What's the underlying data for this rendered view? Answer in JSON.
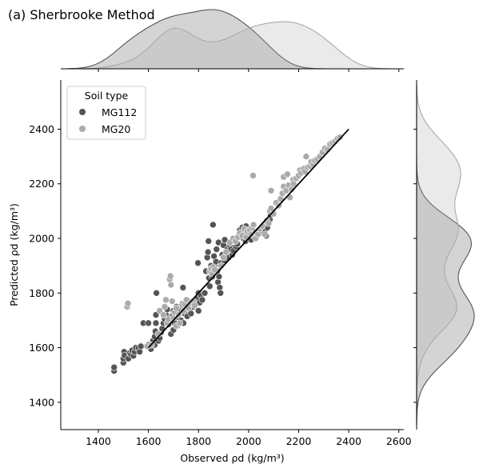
{
  "chart_data": {
    "type": "scatter",
    "title": "(a) Sherbrooke Method",
    "xlabel": "Observed ρd (kg/m³)",
    "ylabel": "Predicted ρd (kg/m³)",
    "xlim": [
      1250,
      2620
    ],
    "ylim": [
      1300,
      2580
    ],
    "xticks": [
      "1400",
      "1600",
      "1800",
      "2000",
      "2200",
      "2400",
      "2600"
    ],
    "yticks": [
      "1400",
      "1600",
      "1800",
      "2000",
      "2200",
      "2400"
    ],
    "legend": {
      "title": "Soil type",
      "position": "upper-left"
    },
    "colors": {
      "MG112": "#555555",
      "MG20": "#aaaaaa",
      "fit_line": "#000000"
    },
    "fit_line": {
      "x": [
        1600,
        2400
      ],
      "y": [
        1600,
        2400
      ]
    },
    "series": [
      {
        "name": "MG112",
        "points": [
          [
            1463,
            1515
          ],
          [
            1463,
            1528
          ],
          [
            1500,
            1545
          ],
          [
            1500,
            1560
          ],
          [
            1503,
            1585
          ],
          [
            1505,
            1572
          ],
          [
            1520,
            1560
          ],
          [
            1525,
            1580
          ],
          [
            1530,
            1575
          ],
          [
            1535,
            1590
          ],
          [
            1540,
            1570
          ],
          [
            1545,
            1585
          ],
          [
            1550,
            1600
          ],
          [
            1560,
            1598
          ],
          [
            1565,
            1585
          ],
          [
            1570,
            1605
          ],
          [
            1580,
            1690
          ],
          [
            1600,
            1610
          ],
          [
            1600,
            1690
          ],
          [
            1610,
            1595
          ],
          [
            1618,
            1625
          ],
          [
            1625,
            1610
          ],
          [
            1625,
            1640
          ],
          [
            1628,
            1660
          ],
          [
            1630,
            1690
          ],
          [
            1630,
            1720
          ],
          [
            1632,
            1800
          ],
          [
            1640,
            1625
          ],
          [
            1645,
            1635
          ],
          [
            1650,
            1655
          ],
          [
            1655,
            1670
          ],
          [
            1660,
            1690
          ],
          [
            1665,
            1705
          ],
          [
            1670,
            1720
          ],
          [
            1675,
            1740
          ],
          [
            1680,
            1685
          ],
          [
            1685,
            1700
          ],
          [
            1690,
            1650
          ],
          [
            1695,
            1715
          ],
          [
            1700,
            1665
          ],
          [
            1700,
            1735
          ],
          [
            1705,
            1690
          ],
          [
            1710,
            1720
          ],
          [
            1712,
            1750
          ],
          [
            1715,
            1680
          ],
          [
            1720,
            1710
          ],
          [
            1725,
            1740
          ],
          [
            1730,
            1700
          ],
          [
            1735,
            1760
          ],
          [
            1738,
            1820
          ],
          [
            1740,
            1690
          ],
          [
            1745,
            1725
          ],
          [
            1750,
            1755
          ],
          [
            1755,
            1715
          ],
          [
            1760,
            1770
          ],
          [
            1765,
            1740
          ],
          [
            1770,
            1725
          ],
          [
            1775,
            1765
          ],
          [
            1780,
            1750
          ],
          [
            1785,
            1772
          ],
          [
            1790,
            1760
          ],
          [
            1795,
            1780
          ],
          [
            1798,
            1910
          ],
          [
            1800,
            1735
          ],
          [
            1800,
            1800
          ],
          [
            1805,
            1765
          ],
          [
            1810,
            1790
          ],
          [
            1815,
            1775
          ],
          [
            1825,
            1800
          ],
          [
            1830,
            1880
          ],
          [
            1835,
            1930
          ],
          [
            1838,
            1950
          ],
          [
            1840,
            1990
          ],
          [
            1842,
            1855
          ],
          [
            1845,
            1825
          ],
          [
            1850,
            1900
          ],
          [
            1855,
            1860
          ],
          [
            1858,
            2050
          ],
          [
            1862,
            1935
          ],
          [
            1865,
            1900
          ],
          [
            1870,
            1915
          ],
          [
            1872,
            1960
          ],
          [
            1875,
            1880
          ],
          [
            1878,
            1840
          ],
          [
            1880,
            1985
          ],
          [
            1882,
            1860
          ],
          [
            1885,
            1820
          ],
          [
            1888,
            1800
          ],
          [
            1890,
            1910
          ],
          [
            1895,
            1940
          ],
          [
            1900,
            1975
          ],
          [
            1903,
            1920
          ],
          [
            1905,
            1995
          ],
          [
            1910,
            1950
          ],
          [
            1915,
            1960
          ],
          [
            1920,
            1930
          ],
          [
            1925,
            1975
          ],
          [
            1930,
            1960
          ],
          [
            1935,
            1940
          ],
          [
            1940,
            1955
          ],
          [
            1945,
            2000
          ],
          [
            1950,
            1970
          ],
          [
            1955,
            1980
          ],
          [
            1960,
            2010
          ],
          [
            1965,
            2030
          ],
          [
            1970,
            2020
          ],
          [
            1975,
            2040
          ],
          [
            1980,
            2000
          ],
          [
            1985,
            2030
          ],
          [
            1988,
            1990
          ],
          [
            1990,
            2045
          ],
          [
            1995,
            2015
          ],
          [
            2000,
            2000
          ],
          [
            2005,
            2035
          ],
          [
            2010,
            1995
          ],
          [
            2020,
            2010
          ],
          [
            2025,
            2025
          ],
          [
            2030,
            2005
          ],
          [
            2040,
            2030
          ],
          [
            2055,
            2020
          ],
          [
            2060,
            2050
          ],
          [
            2065,
            2030
          ],
          [
            2070,
            2010
          ],
          [
            2075,
            2040
          ],
          [
            2082,
            2060
          ],
          [
            2085,
            2070
          ],
          [
            2088,
            2085
          ]
        ]
      },
      {
        "name": "MG20",
        "points": [
          [
            1515,
            1750
          ],
          [
            1518,
            1762
          ],
          [
            1595,
            1605
          ],
          [
            1612,
            1610
          ],
          [
            1640,
            1650
          ],
          [
            1645,
            1735
          ],
          [
            1660,
            1720
          ],
          [
            1665,
            1750
          ],
          [
            1670,
            1775
          ],
          [
            1675,
            1690
          ],
          [
            1680,
            1705
          ],
          [
            1685,
            1850
          ],
          [
            1688,
            1862
          ],
          [
            1690,
            1830
          ],
          [
            1695,
            1770
          ],
          [
            1700,
            1710
          ],
          [
            1705,
            1730
          ],
          [
            1710,
            1680
          ],
          [
            1712,
            1745
          ],
          [
            1720,
            1720
          ],
          [
            1725,
            1690
          ],
          [
            1735,
            1755
          ],
          [
            1740,
            1735
          ],
          [
            1745,
            1760
          ],
          [
            1752,
            1775
          ],
          [
            1760,
            1745
          ],
          [
            1770,
            1765
          ],
          [
            1780,
            1770
          ],
          [
            1785,
            1755
          ],
          [
            1845,
            1880
          ],
          [
            1850,
            1890
          ],
          [
            1855,
            1870
          ],
          [
            1860,
            1895
          ],
          [
            1865,
            1885
          ],
          [
            1890,
            1900
          ],
          [
            1900,
            1930
          ],
          [
            1910,
            1950
          ],
          [
            1925,
            1985
          ],
          [
            1938,
            2000
          ],
          [
            1948,
            1990
          ],
          [
            1958,
            2005
          ],
          [
            1965,
            2020
          ],
          [
            1975,
            2010
          ],
          [
            1982,
            2035
          ],
          [
            1990,
            2005
          ],
          [
            1995,
            2025
          ],
          [
            2005,
            2030
          ],
          [
            2010,
            2015
          ],
          [
            2015,
            2040
          ],
          [
            2018,
            2230
          ],
          [
            2020,
            2050
          ],
          [
            2028,
            2000
          ],
          [
            2038,
            2015
          ],
          [
            2045,
            2035
          ],
          [
            2055,
            2045
          ],
          [
            2065,
            2015
          ],
          [
            2072,
            2065
          ],
          [
            2080,
            2055
          ],
          [
            2085,
            2100
          ],
          [
            2090,
            2175
          ],
          [
            2100,
            2090
          ],
          [
            2110,
            2130
          ],
          [
            2120,
            2120
          ],
          [
            2128,
            2145
          ],
          [
            2135,
            2165
          ],
          [
            2140,
            2225
          ],
          [
            2140,
            2190
          ],
          [
            2150,
            2175
          ],
          [
            2155,
            2235
          ],
          [
            2160,
            2195
          ],
          [
            2165,
            2150
          ],
          [
            2172,
            2180
          ],
          [
            2178,
            2215
          ],
          [
            2180,
            2200
          ],
          [
            2190,
            2220
          ],
          [
            2200,
            2230
          ],
          [
            2205,
            2250
          ],
          [
            2210,
            2240
          ],
          [
            2220,
            2255
          ],
          [
            2225,
            2245
          ],
          [
            2230,
            2300
          ],
          [
            2235,
            2260
          ],
          [
            2245,
            2265
          ],
          [
            2250,
            2280
          ],
          [
            2258,
            2270
          ],
          [
            2265,
            2285
          ],
          [
            2275,
            2290
          ],
          [
            2285,
            2300
          ],
          [
            2295,
            2315
          ],
          [
            2305,
            2330
          ],
          [
            2315,
            2325
          ],
          [
            2325,
            2345
          ],
          [
            2335,
            2350
          ],
          [
            2345,
            2355
          ],
          [
            2355,
            2365
          ],
          [
            2365,
            2370
          ],
          [
            2090,
            2110
          ]
        ]
      }
    ]
  }
}
